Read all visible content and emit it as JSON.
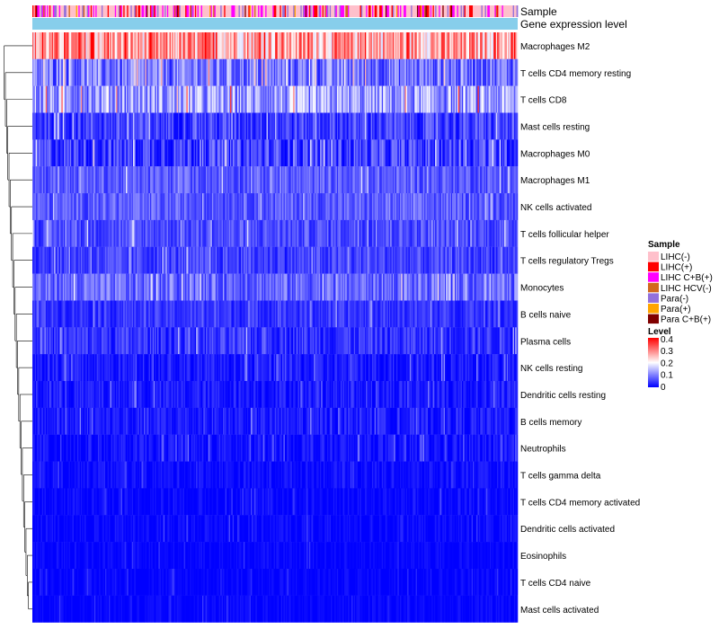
{
  "chart_data": {
    "type": "heatmap",
    "annotations": {
      "sample_label": "Sample",
      "gene_label": "Gene expression level"
    },
    "rows": [
      {
        "label": "Macrophages M2",
        "mean": 0.27,
        "spread": 0.1
      },
      {
        "label": "T cells CD4 memory resting",
        "mean": 0.09,
        "spread": 0.07
      },
      {
        "label": "T cells CD8",
        "mean": 0.12,
        "spread": 0.08
      },
      {
        "label": "Mast cells resting",
        "mean": 0.05,
        "spread": 0.05
      },
      {
        "label": "Macrophages M0",
        "mean": 0.05,
        "spread": 0.06
      },
      {
        "label": "Macrophages M1",
        "mean": 0.07,
        "spread": 0.04
      },
      {
        "label": "NK cells activated",
        "mean": 0.07,
        "spread": 0.04
      },
      {
        "label": "T cells follicular helper",
        "mean": 0.06,
        "spread": 0.04
      },
      {
        "label": "T cells regulatory  Tregs",
        "mean": 0.05,
        "spread": 0.04
      },
      {
        "label": "Monocytes",
        "mean": 0.08,
        "spread": 0.05
      },
      {
        "label": "B cells naive",
        "mean": 0.04,
        "spread": 0.03
      },
      {
        "label": "Plasma cells",
        "mean": 0.04,
        "spread": 0.04
      },
      {
        "label": "NK cells resting",
        "mean": 0.02,
        "spread": 0.03
      },
      {
        "label": "Dendritic cells resting",
        "mean": 0.02,
        "spread": 0.03
      },
      {
        "label": "B cells memory",
        "mean": 0.02,
        "spread": 0.03
      },
      {
        "label": "Neutrophils",
        "mean": 0.01,
        "spread": 0.03
      },
      {
        "label": "T cells gamma delta",
        "mean": 0.01,
        "spread": 0.02
      },
      {
        "label": "T cells CD4 memory activated",
        "mean": 0.005,
        "spread": 0.02
      },
      {
        "label": "Dendritic cells activated",
        "mean": 0.005,
        "spread": 0.02
      },
      {
        "label": "Eosinophils",
        "mean": 0.003,
        "spread": 0.015
      },
      {
        "label": "T cells CD4 naive",
        "mean": 0.003,
        "spread": 0.015
      },
      {
        "label": "Mast cells activated",
        "mean": 0.003,
        "spread": 0.015
      }
    ],
    "n_samples": 400,
    "legend_sample": {
      "title": "Sample",
      "items": [
        {
          "label": "LIHC(-)",
          "color": "#ffc0cb"
        },
        {
          "label": "LIHC(+)",
          "color": "#ff0000"
        },
        {
          "label": "LIHC C+B(+)",
          "color": "#ff00ff"
        },
        {
          "label": "LIHC HCV(-)",
          "color": "#d2691e"
        },
        {
          "label": "Para(-)",
          "color": "#9370db"
        },
        {
          "label": "Para(+)",
          "color": "#ffa500"
        },
        {
          "label": "Para C+B(+)",
          "color": "#800000"
        }
      ]
    },
    "legend_level": {
      "title": "Level",
      "ticks": [
        "0.4",
        "0.3",
        "0.2",
        "0.1",
        "0"
      ],
      "range": [
        0,
        0.4
      ],
      "colors": [
        "#0000ff",
        "#ffffff",
        "#ff0000"
      ]
    },
    "gene_bar_color": "#87ceeb"
  }
}
